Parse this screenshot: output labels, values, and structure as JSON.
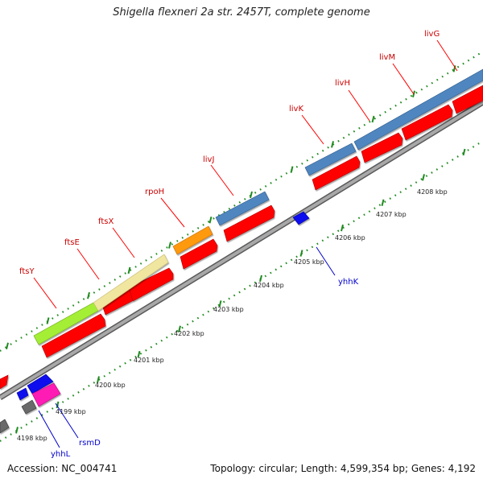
{
  "title": "Shigella flexneri 2a str. 2457T, complete genome",
  "footer": {
    "accession": "Accession: NC_004741",
    "summary": "Topology: circular; Length: 4,599,354 bp; Genes: 4,192"
  },
  "colors": {
    "backbone": "#8c8c8c",
    "ticks": "#1f8a1f",
    "cds": "#ff0000",
    "forward_label": "#cc0000",
    "reverse_label": "#0000cc",
    "reverse_gene": "#1010ee",
    "ftsY": "#a4ee34",
    "ftsE_ftsX": "#f0e6a0",
    "rpoH": "#ff9910",
    "liv": "#4f86c0",
    "rsmD": "#ff1cb4",
    "gray_gene": "#6a6a6a"
  },
  "kbp_labels": [
    "4198 kbp",
    "4199 kbp",
    "4200 kbp",
    "4201 kbp",
    "4202 kbp",
    "4203 kbp",
    "4204 kbp",
    "4205 kbp",
    "4206 kbp",
    "4207 kbp",
    "4208 kbp"
  ],
  "forward_gene_labels": [
    "ftsY",
    "ftsE",
    "ftsX",
    "rpoH",
    "livJ",
    "livK",
    "livH",
    "livM",
    "livG"
  ],
  "reverse_gene_labels": [
    "yhhL",
    "rsmD",
    "yhhK"
  ]
}
